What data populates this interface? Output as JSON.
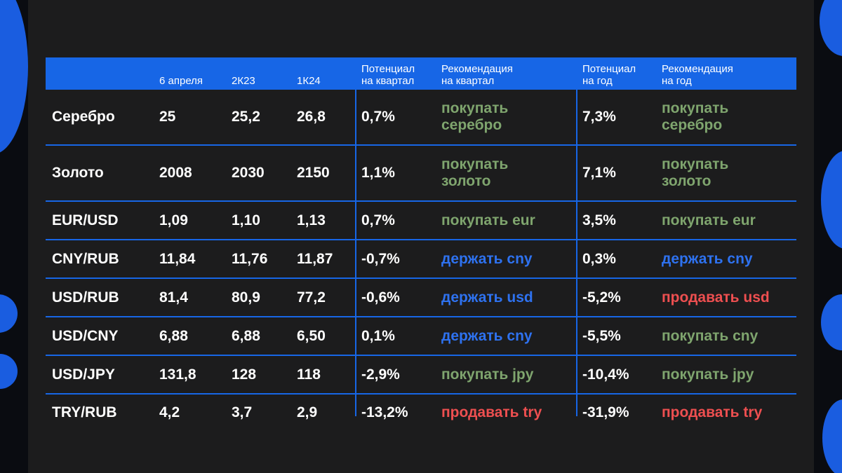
{
  "colors": {
    "accent_blue": "#1766e6",
    "panel_bg": "#1c1c1d",
    "buy": "#7fa56e",
    "hold": "#2e72f0",
    "sell": "#ee4f50"
  },
  "table": {
    "headers": {
      "date": "6 апреля",
      "q2": "2К23",
      "q1": "1К24",
      "potential_q": "Потенциал\nна квартал",
      "rec_q": "Рекомендация\nна квартал",
      "potential_y": "Потенциал\nна год",
      "rec_y": "Рекомендация\nна год"
    },
    "rows": [
      {
        "asset": "Серебро",
        "date": "25",
        "q2": "25,2",
        "q1": "26,8",
        "pot_q": "0,7%",
        "rec_q": "покупать\nсеребро",
        "rec_q_type": "buy",
        "pot_y": "7,3%",
        "rec_y": "покупать\nсеребро",
        "rec_y_type": "buy"
      },
      {
        "asset": "Золото",
        "date": "2008",
        "q2": "2030",
        "q1": "2150",
        "pot_q": "1,1%",
        "rec_q": "покупать\nзолото",
        "rec_q_type": "buy",
        "pot_y": "7,1%",
        "rec_y": "покупать\nзолото",
        "rec_y_type": "buy"
      },
      {
        "asset": "EUR/USD",
        "date": "1,09",
        "q2": "1,10",
        "q1": "1,13",
        "pot_q": "0,7%",
        "rec_q": "покупать eur",
        "rec_q_type": "buy",
        "pot_y": "3,5%",
        "rec_y": "покупать eur",
        "rec_y_type": "buy"
      },
      {
        "asset": "CNY/RUB",
        "date": "11,84",
        "q2": "11,76",
        "q1": "11,87",
        "pot_q": "-0,7%",
        "rec_q": "держать cny",
        "rec_q_type": "hold",
        "pot_y": "0,3%",
        "rec_y": "держать cny",
        "rec_y_type": "hold"
      },
      {
        "asset": "USD/RUB",
        "date": "81,4",
        "q2": "80,9",
        "q1": "77,2",
        "pot_q": "-0,6%",
        "rec_q": "держать usd",
        "rec_q_type": "hold",
        "pot_y": "-5,2%",
        "rec_y": "продавать usd",
        "rec_y_type": "sell"
      },
      {
        "asset": "USD/CNY",
        "date": "6,88",
        "q2": "6,88",
        "q1": "6,50",
        "pot_q": "0,1%",
        "rec_q": "держать cny",
        "rec_q_type": "hold",
        "pot_y": "-5,5%",
        "rec_y": "покупать cny",
        "rec_y_type": "buy"
      },
      {
        "asset": "USD/JPY",
        "date": "131,8",
        "q2": "128",
        "q1": "118",
        "pot_q": "-2,9%",
        "rec_q": "покупать jpy",
        "rec_q_type": "buy",
        "pot_y": "-10,4%",
        "rec_y": "покупать jpy",
        "rec_y_type": "buy"
      },
      {
        "asset": "TRY/RUB",
        "date": "4,2",
        "q2": "3,7",
        "q1": "2,9",
        "pot_q": "-13,2%",
        "rec_q": "продавать try",
        "rec_q_type": "sell",
        "pot_y": "-31,9%",
        "rec_y": "продавать try",
        "rec_y_type": "sell"
      }
    ]
  }
}
